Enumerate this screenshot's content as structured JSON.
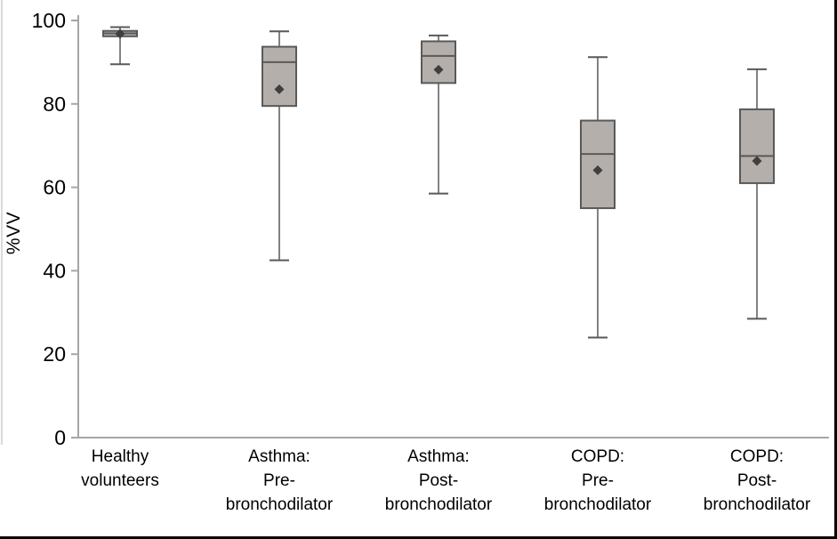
{
  "chart_data": {
    "type": "boxplot",
    "title": "",
    "xlabel": "",
    "ylabel": "%VV",
    "ylim": [
      0,
      100
    ],
    "yticks": [
      0,
      20,
      40,
      60,
      80,
      100
    ],
    "grid": false,
    "legend": "none",
    "categories": [
      "Healthy volunteers",
      "Asthma: Pre-bronchodilator",
      "Asthma: Post-bronchodilator",
      "COPD: Pre-bronchodilator",
      "COPD: Post-bronchodilator"
    ],
    "boxes": [
      {
        "category": "Healthy volunteers",
        "label_lines": [
          "Healthy",
          "volunteers"
        ],
        "whisker_low": 89.5,
        "q1": 96.2,
        "median": 96.9,
        "q3": 97.5,
        "whisker_high": 98.4,
        "mean": 96.8
      },
      {
        "category": "Asthma: Pre-bronchodilator",
        "label_lines": [
          "Asthma:",
          "Pre-",
          "bronchodilator"
        ],
        "whisker_low": 42.5,
        "q1": 79.5,
        "median": 90.0,
        "q3": 93.7,
        "whisker_high": 97.4,
        "mean": 83.5
      },
      {
        "category": "Asthma: Post-bronchodilator",
        "label_lines": [
          "Asthma:",
          "Post-",
          "bronchodilator"
        ],
        "whisker_low": 58.5,
        "q1": 85.0,
        "median": 91.5,
        "q3": 95.0,
        "whisker_high": 96.4,
        "mean": 88.2
      },
      {
        "category": "COPD: Pre-bronchodilator",
        "label_lines": [
          "COPD:",
          "Pre-",
          "bronchodilator"
        ],
        "whisker_low": 24.0,
        "q1": 55.0,
        "median": 68.0,
        "q3": 76.0,
        "whisker_high": 91.2,
        "mean": 64.1
      },
      {
        "category": "COPD: Post-bronchodilator",
        "label_lines": [
          "COPD:",
          "Post-",
          "bronchodilator"
        ],
        "whisker_low": 28.5,
        "q1": 61.0,
        "median": 67.5,
        "q3": 78.7,
        "whisker_high": 88.3,
        "mean": 66.3
      }
    ]
  },
  "colors": {
    "box_fill": "#b4afab",
    "box_stroke": "#595959",
    "whisker_stroke": "#595959",
    "median_stroke": "#595959",
    "mean_marker": "#3f3f3f",
    "axis_line": "#a6a6a6",
    "tick_text": "#000000",
    "category_text": "#000000",
    "frame_border": "#000000"
  }
}
